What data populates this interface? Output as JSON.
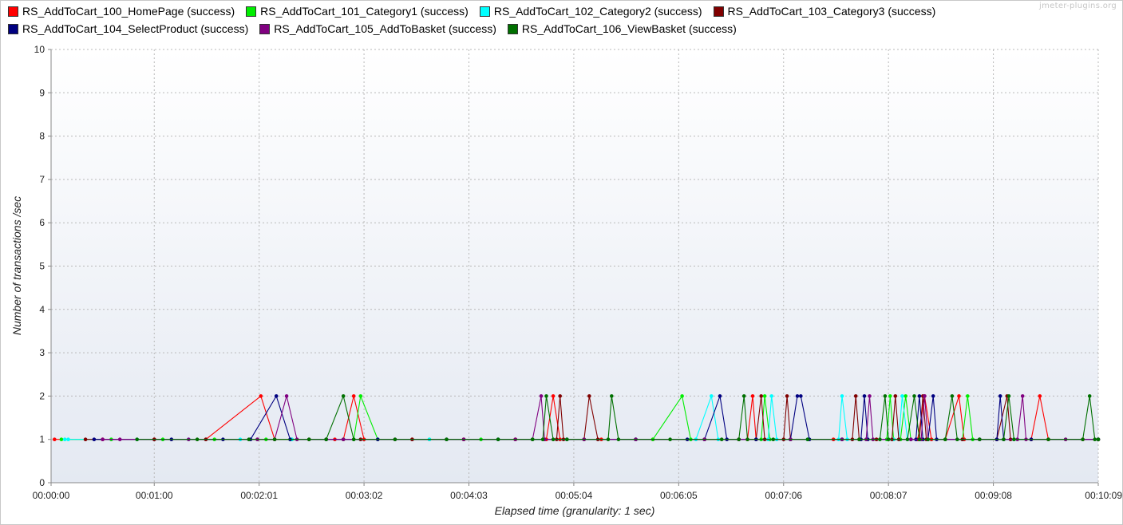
{
  "watermark": "jmeter-plugins.org",
  "chart_data": {
    "type": "line",
    "title": "",
    "xlabel": "Elapsed time (granularity: 1 sec)",
    "ylabel": "Number of transactions /sec",
    "xlim": [
      0,
      609
    ],
    "ylim": [
      0,
      10
    ],
    "x_unit": "seconds",
    "x_ticks": [
      {
        "value": 0,
        "label": "00:00:00"
      },
      {
        "value": 60,
        "label": "00:01:00"
      },
      {
        "value": 121,
        "label": "00:02:01"
      },
      {
        "value": 182,
        "label": "00:03:02"
      },
      {
        "value": 243,
        "label": "00:04:03"
      },
      {
        "value": 304,
        "label": "00:05:04"
      },
      {
        "value": 365,
        "label": "00:06:05"
      },
      {
        "value": 426,
        "label": "00:07:06"
      },
      {
        "value": 487,
        "label": "00:08:07"
      },
      {
        "value": 548,
        "label": "00:09:08"
      },
      {
        "value": 609,
        "label": "00:10:09"
      }
    ],
    "y_ticks": [
      0,
      1,
      2,
      3,
      4,
      5,
      6,
      7,
      8,
      9,
      10
    ],
    "grid": true,
    "legend_position": "top-left",
    "series": [
      {
        "name": "RS_AddToCart_100_HomePage (success)",
        "color": "#ff0000",
        "points": [
          [
            2,
            1
          ],
          [
            30,
            1
          ],
          [
            60,
            1
          ],
          [
            90,
            1
          ],
          [
            122,
            2
          ],
          [
            130,
            1
          ],
          [
            160,
            1
          ],
          [
            165,
            1
          ],
          [
            170,
            1
          ],
          [
            176,
            2
          ],
          [
            182,
            1
          ],
          [
            210,
            1
          ],
          [
            240,
            1
          ],
          [
            270,
            1
          ],
          [
            288,
            1
          ],
          [
            292,
            2
          ],
          [
            296,
            1
          ],
          [
            320,
            1
          ],
          [
            350,
            1
          ],
          [
            380,
            1
          ],
          [
            400,
            1
          ],
          [
            405,
            1
          ],
          [
            408,
            2
          ],
          [
            410,
            1
          ],
          [
            430,
            1
          ],
          [
            455,
            1
          ],
          [
            480,
            1
          ],
          [
            490,
            1
          ],
          [
            504,
            1
          ],
          [
            508,
            2
          ],
          [
            512,
            1
          ],
          [
            520,
            1
          ],
          [
            528,
            2
          ],
          [
            531,
            1
          ],
          [
            550,
            1
          ],
          [
            570,
            1
          ],
          [
            575,
            2
          ],
          [
            580,
            1
          ],
          [
            600,
            1
          ],
          [
            609,
            1
          ]
        ]
      },
      {
        "name": "RS_AddToCart_101_Category1 (success)",
        "color": "#00ee00",
        "points": [
          [
            6,
            1
          ],
          [
            35,
            1
          ],
          [
            65,
            1
          ],
          [
            95,
            1
          ],
          [
            125,
            1
          ],
          [
            140,
            1
          ],
          [
            160,
            1
          ],
          [
            170,
            1
          ],
          [
            176,
            1
          ],
          [
            180,
            2
          ],
          [
            190,
            1
          ],
          [
            220,
            1
          ],
          [
            250,
            1
          ],
          [
            280,
            1
          ],
          [
            310,
            1
          ],
          [
            340,
            1
          ],
          [
            350,
            1
          ],
          [
            367,
            2
          ],
          [
            372,
            1
          ],
          [
            400,
            1
          ],
          [
            413,
            1
          ],
          [
            415,
            2
          ],
          [
            418,
            1
          ],
          [
            440,
            1
          ],
          [
            470,
            1
          ],
          [
            486,
            1
          ],
          [
            488,
            2
          ],
          [
            490,
            1
          ],
          [
            494,
            1
          ],
          [
            497,
            2
          ],
          [
            500,
            1
          ],
          [
            520,
            1
          ],
          [
            530,
            1
          ],
          [
            533,
            2
          ],
          [
            536,
            1
          ],
          [
            560,
            1
          ],
          [
            590,
            1
          ],
          [
            609,
            1
          ]
        ]
      },
      {
        "name": "RS_AddToCart_102_Category2 (success)",
        "color": "#00ffff",
        "points": [
          [
            8,
            1
          ],
          [
            10,
            1
          ],
          [
            50,
            1
          ],
          [
            80,
            1
          ],
          [
            110,
            1
          ],
          [
            140,
            1
          ],
          [
            180,
            1
          ],
          [
            220,
            1
          ],
          [
            260,
            1
          ],
          [
            300,
            1
          ],
          [
            340,
            1
          ],
          [
            375,
            1
          ],
          [
            384,
            2
          ],
          [
            388,
            1
          ],
          [
            410,
            1
          ],
          [
            417,
            1
          ],
          [
            419,
            2
          ],
          [
            422,
            1
          ],
          [
            440,
            1
          ],
          [
            458,
            1
          ],
          [
            460,
            2
          ],
          [
            463,
            1
          ],
          [
            490,
            1
          ],
          [
            493,
            1
          ],
          [
            495,
            2
          ],
          [
            498,
            1
          ],
          [
            530,
            1
          ],
          [
            560,
            1
          ],
          [
            609,
            1
          ]
        ]
      },
      {
        "name": "RS_AddToCart_103_Category3 (success)",
        "color": "#800000",
        "points": [
          [
            20,
            1
          ],
          [
            60,
            1
          ],
          [
            90,
            1
          ],
          [
            120,
            1
          ],
          [
            150,
            1
          ],
          [
            180,
            1
          ],
          [
            210,
            1
          ],
          [
            240,
            1
          ],
          [
            270,
            1
          ],
          [
            294,
            1
          ],
          [
            296,
            2
          ],
          [
            298,
            1
          ],
          [
            310,
            1
          ],
          [
            313,
            2
          ],
          [
            318,
            1
          ],
          [
            340,
            1
          ],
          [
            380,
            1
          ],
          [
            400,
            1
          ],
          [
            410,
            1
          ],
          [
            413,
            2
          ],
          [
            415,
            1
          ],
          [
            426,
            1
          ],
          [
            428,
            2
          ],
          [
            430,
            1
          ],
          [
            460,
            1
          ],
          [
            466,
            1
          ],
          [
            468,
            2
          ],
          [
            470,
            1
          ],
          [
            480,
            1
          ],
          [
            489,
            1
          ],
          [
            491,
            2
          ],
          [
            493,
            1
          ],
          [
            505,
            1
          ],
          [
            507,
            2
          ],
          [
            509,
            1
          ],
          [
            530,
            1
          ],
          [
            550,
            1
          ],
          [
            556,
            2
          ],
          [
            558,
            1
          ],
          [
            580,
            1
          ],
          [
            609,
            1
          ]
        ]
      },
      {
        "name": "RS_AddToCart_104_SelectProduct (success)",
        "color": "#000080",
        "points": [
          [
            25,
            1
          ],
          [
            70,
            1
          ],
          [
            100,
            1
          ],
          [
            116,
            1
          ],
          [
            131,
            2
          ],
          [
            139,
            1
          ],
          [
            160,
            1
          ],
          [
            190,
            1
          ],
          [
            230,
            1
          ],
          [
            260,
            1
          ],
          [
            300,
            1
          ],
          [
            340,
            1
          ],
          [
            370,
            1
          ],
          [
            380,
            1
          ],
          [
            389,
            2
          ],
          [
            393,
            1
          ],
          [
            410,
            1
          ],
          [
            430,
            1
          ],
          [
            434,
            2
          ],
          [
            436,
            2
          ],
          [
            441,
            1
          ],
          [
            460,
            1
          ],
          [
            471,
            1
          ],
          [
            473,
            2
          ],
          [
            475,
            1
          ],
          [
            500,
            1
          ],
          [
            503,
            1
          ],
          [
            505,
            2
          ],
          [
            507,
            1
          ],
          [
            510,
            1
          ],
          [
            513,
            2
          ],
          [
            515,
            1
          ],
          [
            540,
            1
          ],
          [
            550,
            1
          ],
          [
            552,
            2
          ],
          [
            554,
            1
          ],
          [
            570,
            1
          ],
          [
            609,
            1
          ]
        ]
      },
      {
        "name": "RS_AddToCart_105_AddToBasket (success)",
        "color": "#800080",
        "points": [
          [
            30,
            1
          ],
          [
            40,
            1
          ],
          [
            80,
            1
          ],
          [
            120,
            1
          ],
          [
            130,
            1
          ],
          [
            137,
            2
          ],
          [
            143,
            1
          ],
          [
            170,
            1
          ],
          [
            200,
            1
          ],
          [
            240,
            1
          ],
          [
            270,
            1
          ],
          [
            280,
            1
          ],
          [
            285,
            2
          ],
          [
            287,
            1
          ],
          [
            310,
            1
          ],
          [
            340,
            1
          ],
          [
            380,
            1
          ],
          [
            400,
            1
          ],
          [
            430,
            1
          ],
          [
            460,
            1
          ],
          [
            474,
            1
          ],
          [
            476,
            2
          ],
          [
            478,
            1
          ],
          [
            500,
            1
          ],
          [
            506,
            1
          ],
          [
            508,
            2
          ],
          [
            510,
            1
          ],
          [
            540,
            1
          ],
          [
            562,
            1
          ],
          [
            565,
            2
          ],
          [
            567,
            1
          ],
          [
            590,
            1
          ],
          [
            609,
            1
          ]
        ]
      },
      {
        "name": "RS_AddToCart_106_ViewBasket (success)",
        "color": "#007000",
        "points": [
          [
            50,
            1
          ],
          [
            85,
            1
          ],
          [
            115,
            1
          ],
          [
            130,
            1
          ],
          [
            150,
            1
          ],
          [
            160,
            1
          ],
          [
            170,
            2
          ],
          [
            176,
            1
          ],
          [
            200,
            1
          ],
          [
            230,
            1
          ],
          [
            260,
            1
          ],
          [
            280,
            1
          ],
          [
            286,
            1
          ],
          [
            288,
            2
          ],
          [
            292,
            1
          ],
          [
            300,
            1
          ],
          [
            324,
            1
          ],
          [
            326,
            2
          ],
          [
            330,
            1
          ],
          [
            360,
            1
          ],
          [
            390,
            1
          ],
          [
            400,
            1
          ],
          [
            403,
            2
          ],
          [
            405,
            1
          ],
          [
            420,
            1
          ],
          [
            440,
            1
          ],
          [
            470,
            1
          ],
          [
            482,
            1
          ],
          [
            485,
            2
          ],
          [
            487,
            1
          ],
          [
            498,
            1
          ],
          [
            502,
            2
          ],
          [
            505,
            1
          ],
          [
            510,
            1
          ],
          [
            520,
            1
          ],
          [
            524,
            2
          ],
          [
            527,
            1
          ],
          [
            540,
            1
          ],
          [
            554,
            1
          ],
          [
            557,
            2
          ],
          [
            560,
            1
          ],
          [
            580,
            1
          ],
          [
            600,
            1
          ],
          [
            604,
            2
          ],
          [
            607,
            1
          ],
          [
            609,
            1
          ]
        ]
      }
    ]
  }
}
